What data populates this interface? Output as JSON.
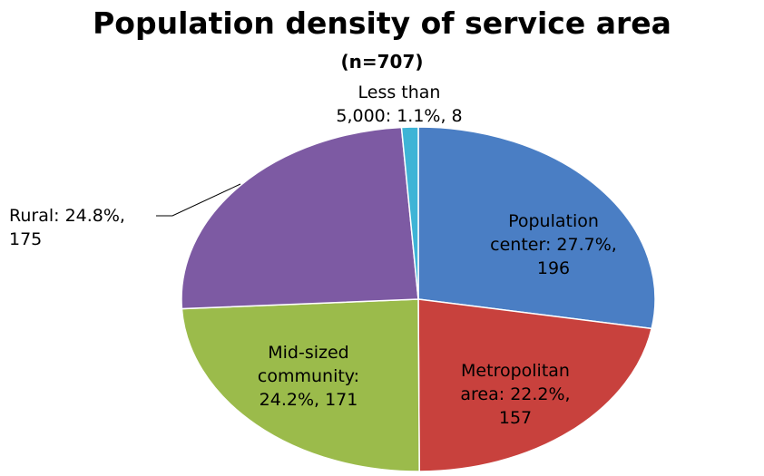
{
  "chart_data": {
    "type": "pie",
    "title": "Population density of service area",
    "subtitle": "(n=707)",
    "slices": [
      {
        "category": "Population center",
        "label_lines": [
          "Population",
          "center: 27.7%,",
          "196"
        ],
        "value": 196,
        "percent": 27.7,
        "color": "#4A7EC4"
      },
      {
        "category": "Metropolitan area",
        "label_lines": [
          "Metropolitan",
          "area: 22.2%,",
          "157"
        ],
        "value": 157,
        "percent": 22.2,
        "color": "#C8413D"
      },
      {
        "category": "Mid-sized community",
        "label_lines": [
          "Mid-sized",
          "community:",
          "24.2%, 171"
        ],
        "value": 171,
        "percent": 24.2,
        "color": "#9BBB4B"
      },
      {
        "category": "Rural",
        "label_lines": [
          "Rural: 24.8%,",
          "175"
        ],
        "value": 175,
        "percent": 24.8,
        "color": "#7D5AA3"
      },
      {
        "category": "Less than 5,000",
        "label_lines": [
          "Less than",
          "5,000: 1.1%, 8"
        ],
        "value": 8,
        "percent": 1.1,
        "color": "#3EB4D6"
      }
    ],
    "start_angle_deg": 0,
    "direction": "clockwise",
    "legend": "none"
  }
}
